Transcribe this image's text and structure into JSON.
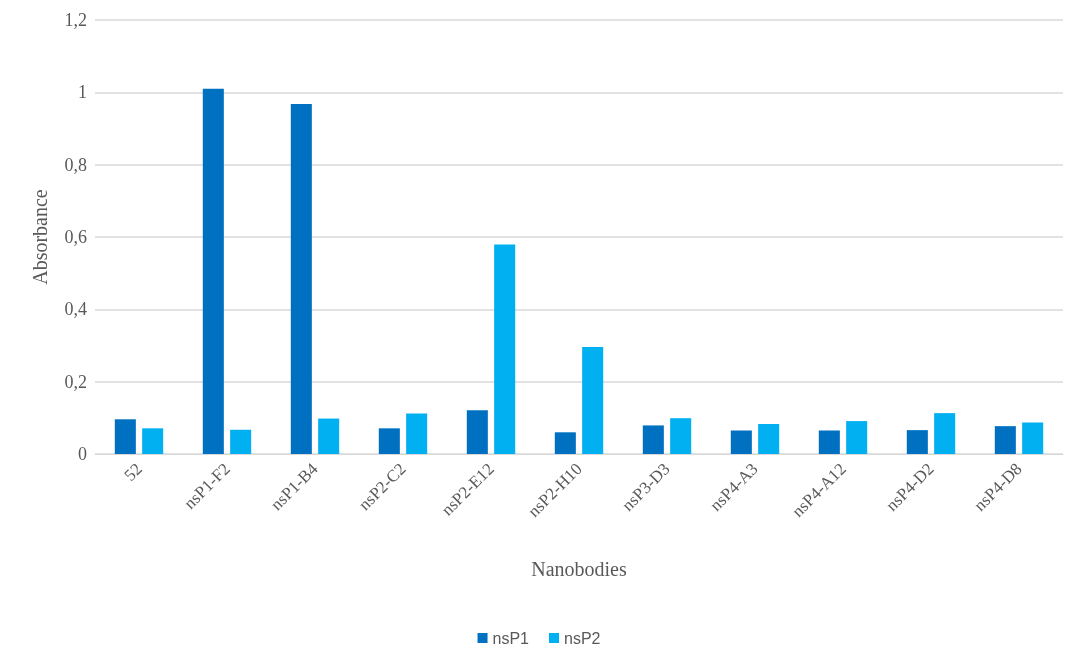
{
  "chart_data": {
    "type": "bar",
    "xlabel": "Nanobodies",
    "ylabel": "Absorbance",
    "categories": [
      "52",
      "nsP1-F2",
      "nsP1-B4",
      "nsP2-C2",
      "nsP2-E12",
      "nsP2-H10",
      "nsP3-D3",
      "nsP4-A3",
      "nsP4-A12",
      "nsP4-D2",
      "nsP4-D8"
    ],
    "series": [
      {
        "name": "nsP1",
        "color": "#0070c0",
        "values": [
          0.096,
          1.01,
          0.968,
          0.071,
          0.121,
          0.06,
          0.079,
          0.065,
          0.065,
          0.066,
          0.077
        ]
      },
      {
        "name": "nsP2",
        "color": "#00b0f0",
        "values": [
          0.071,
          0.067,
          0.098,
          0.112,
          0.579,
          0.296,
          0.099,
          0.083,
          0.091,
          0.113,
          0.087
        ]
      }
    ],
    "ylim": [
      0,
      1.2
    ],
    "yticks": [
      0,
      {
        "value": 0.2,
        "label": "0,2"
      },
      {
        "value": 0.4,
        "label": "0,4"
      },
      {
        "value": 0.6,
        "label": "0,6"
      },
      {
        "value": 0.8,
        "label": "0,8"
      },
      1,
      {
        "value": 1.2,
        "label": "1,2"
      }
    ],
    "grid": "y",
    "legend": "bottom"
  }
}
